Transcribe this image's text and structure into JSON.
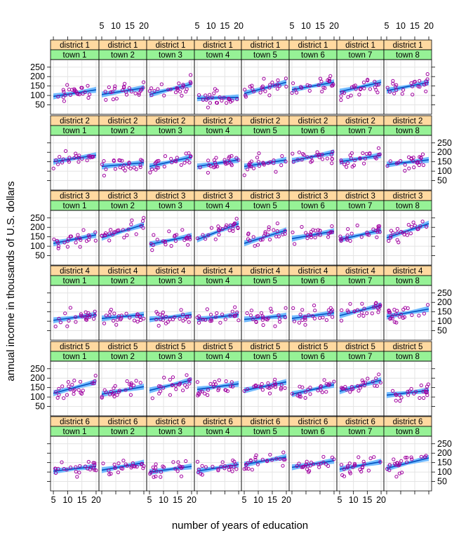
{
  "chart_data": {
    "type": "scatter",
    "layout": "trellis panels",
    "xlabel": "number of years of education",
    "ylabel": "annual income in thousands of U.S. dollars",
    "xlim": [
      4,
      21
    ],
    "ylim": [
      0,
      290
    ],
    "x_ticks": [
      5,
      10,
      15,
      20
    ],
    "x_tick_labels": [
      "5",
      "10",
      "15",
      "20"
    ],
    "y_ticks": [
      50,
      100,
      150,
      200,
      250
    ],
    "y_tick_labels": [
      "50",
      "100",
      "150",
      "200",
      "250"
    ],
    "grid": true,
    "overlay": "fitted regression line with confidence band",
    "strip_outer_label": "district",
    "strip_inner_label": "town",
    "districts": [
      "district 1",
      "district 2",
      "district 3",
      "district 4",
      "district 5",
      "district 6"
    ],
    "towns": [
      "town 1",
      "town 2",
      "town 3",
      "town 4",
      "town 5",
      "town 6",
      "town 7",
      "town 8"
    ],
    "fit_lines": [
      [
        [
          95,
          130
        ],
        [
          105,
          140
        ],
        [
          105,
          160
        ],
        [
          85,
          90
        ],
        [
          110,
          170
        ],
        [
          130,
          170
        ],
        [
          120,
          170
        ],
        [
          125,
          170
        ]
      ],
      [
        [
          150,
          185
        ],
        [
          125,
          145
        ],
        [
          125,
          175
        ],
        [
          125,
          160
        ],
        [
          125,
          160
        ],
        [
          155,
          200
        ],
        [
          150,
          185
        ],
        [
          135,
          160
        ]
      ],
      [
        [
          115,
          160
        ],
        [
          145,
          215
        ],
        [
          110,
          155
        ],
        [
          135,
          220
        ],
        [
          115,
          185
        ],
        [
          140,
          180
        ],
        [
          135,
          185
        ],
        [
          145,
          220
        ]
      ],
      [
        [
          105,
          135
        ],
        [
          115,
          135
        ],
        [
          110,
          135
        ],
        [
          110,
          135
        ],
        [
          110,
          130
        ],
        [
          115,
          145
        ],
        [
          130,
          185
        ],
        [
          125,
          165
        ]
      ],
      [
        [
          120,
          180
        ],
        [
          115,
          155
        ],
        [
          135,
          190
        ],
        [
          140,
          170
        ],
        [
          135,
          180
        ],
        [
          115,
          165
        ],
        [
          130,
          190
        ],
        [
          110,
          135
        ]
      ],
      [
        [
          105,
          130
        ],
        [
          110,
          150
        ],
        [
          100,
          130
        ],
        [
          105,
          140
        ],
        [
          140,
          180
        ],
        [
          125,
          160
        ],
        [
          115,
          155
        ],
        [
          120,
          175
        ]
      ]
    ],
    "colors": {
      "strip_outer": "#ffd9a0",
      "strip_inner": "#96f296",
      "points": "#a000a0",
      "fit_line": "#0050c0",
      "band": "#5cb0ff",
      "grid": "#e4e4e4",
      "panel_border": "#000000"
    }
  }
}
